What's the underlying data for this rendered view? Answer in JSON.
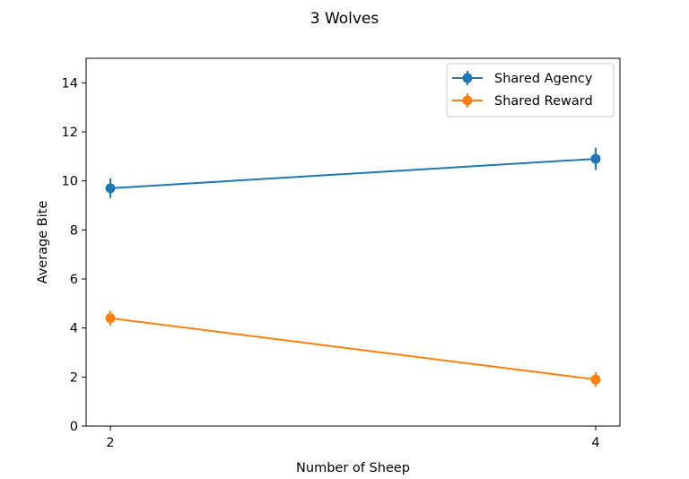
{
  "chart_data": {
    "type": "line",
    "title": "3 Wolves",
    "xlabel": "Number of Sheep",
    "ylabel": "Average Bite",
    "x": [
      2,
      4
    ],
    "xticks": [
      "2",
      "4"
    ],
    "yticks": [
      "0",
      "2",
      "4",
      "6",
      "8",
      "10",
      "12",
      "14"
    ],
    "ylim": [
      0,
      15
    ],
    "grid": false,
    "legend_position": "top-right",
    "series": [
      {
        "name": "Shared Agency",
        "color": "#1f77b4",
        "values": [
          9.7,
          10.9
        ],
        "errors": [
          0.4,
          0.45
        ]
      },
      {
        "name": "Shared Reward",
        "color": "#ff7f0e",
        "values": [
          4.4,
          1.9
        ],
        "errors": [
          0.3,
          0.3
        ]
      }
    ]
  }
}
